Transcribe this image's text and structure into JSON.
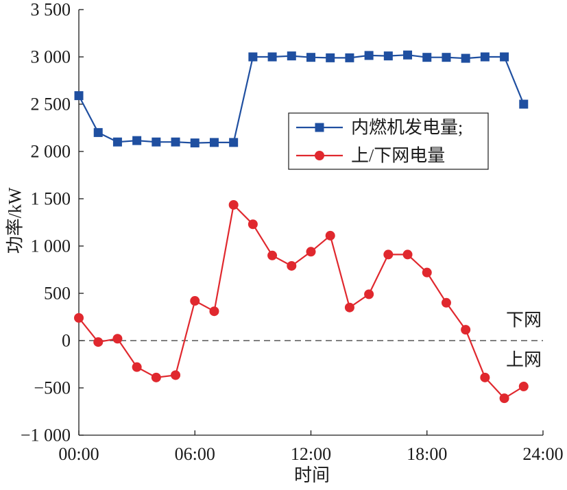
{
  "chart_data": {
    "type": "line",
    "x": [
      "00:00",
      "01:00",
      "02:00",
      "03:00",
      "04:00",
      "05:00",
      "06:00",
      "07:00",
      "08:00",
      "09:00",
      "10:00",
      "11:00",
      "12:00",
      "13:00",
      "14:00",
      "15:00",
      "16:00",
      "17:00",
      "18:00",
      "19:00",
      "20:00",
      "21:00",
      "22:00",
      "23:00"
    ],
    "xlim": [
      "00:00",
      "24:00"
    ],
    "x_ticks": [
      "00:00",
      "06:00",
      "12:00",
      "18:00",
      "24:00"
    ],
    "ylim": [
      -1000,
      3500
    ],
    "y_ticks": [
      3500,
      3000,
      2500,
      2000,
      1500,
      1000,
      500,
      0,
      -500,
      -1000
    ],
    "y_tick_labels": [
      "3 500",
      "3 000",
      "2 500",
      "2 000",
      "1 500",
      "1 000",
      "500",
      "0",
      "−500",
      "−1 000"
    ],
    "xlabel": "时间",
    "ylabel": "功率/kW",
    "grid": false,
    "legend": {
      "position": "upper-right",
      "border": true
    },
    "series": [
      {
        "name": "内燃机发电量;",
        "color": "#1f4fa0",
        "marker": "square",
        "values": [
          2590,
          2200,
          2100,
          2115,
          2100,
          2100,
          2090,
          2095,
          2095,
          3000,
          3000,
          3010,
          2995,
          2990,
          2990,
          3015,
          3010,
          3020,
          2995,
          2995,
          2985,
          3000,
          3000,
          2500
        ]
      },
      {
        "name": "上/下网电量",
        "color": "#e0282e",
        "marker": "circle",
        "values": [
          240,
          -15,
          20,
          -280,
          -390,
          -365,
          420,
          310,
          1435,
          1230,
          900,
          790,
          940,
          1110,
          350,
          490,
          910,
          910,
          720,
          400,
          115,
          -390,
          -610,
          -485
        ]
      }
    ],
    "reference_line": {
      "y": 0,
      "style": "dashed",
      "color": "#333333"
    },
    "annotations": [
      {
        "text": "下网",
        "side": "above"
      },
      {
        "text": "上网",
        "side": "below"
      }
    ]
  }
}
